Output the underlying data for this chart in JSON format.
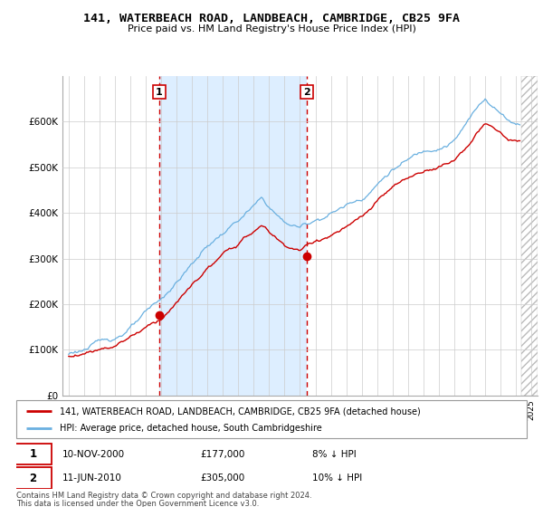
{
  "title": "141, WATERBEACH ROAD, LANDBEACH, CAMBRIDGE, CB25 9FA",
  "subtitle": "Price paid vs. HM Land Registry's House Price Index (HPI)",
  "legend_line1": "141, WATERBEACH ROAD, LANDBEACH, CAMBRIDGE, CB25 9FA (detached house)",
  "legend_line2": "HPI: Average price, detached house, South Cambridgeshire",
  "footer1": "Contains HM Land Registry data © Crown copyright and database right 2024.",
  "footer2": "This data is licensed under the Open Government Licence v3.0.",
  "sale1_label": "1",
  "sale1_date": "10-NOV-2000",
  "sale1_price": "£177,000",
  "sale1_hpi": "8% ↓ HPI",
  "sale2_label": "2",
  "sale2_date": "11-JUN-2010",
  "sale2_price": "£305,000",
  "sale2_hpi": "10% ↓ HPI",
  "sale1_year": 2000.87,
  "sale1_value": 177000,
  "sale2_year": 2010.44,
  "sale2_value": 305000,
  "hpi_color": "#6ab0e0",
  "price_color": "#cc0000",
  "vline_color": "#cc0000",
  "shade_color": "#ddeeff",
  "ylim": [
    0,
    700000
  ],
  "xlim_start": 1994.6,
  "xlim_end": 2025.4,
  "background_color": "#ffffff",
  "grid_color": "#cccccc",
  "cutoff_year": 2024.33
}
